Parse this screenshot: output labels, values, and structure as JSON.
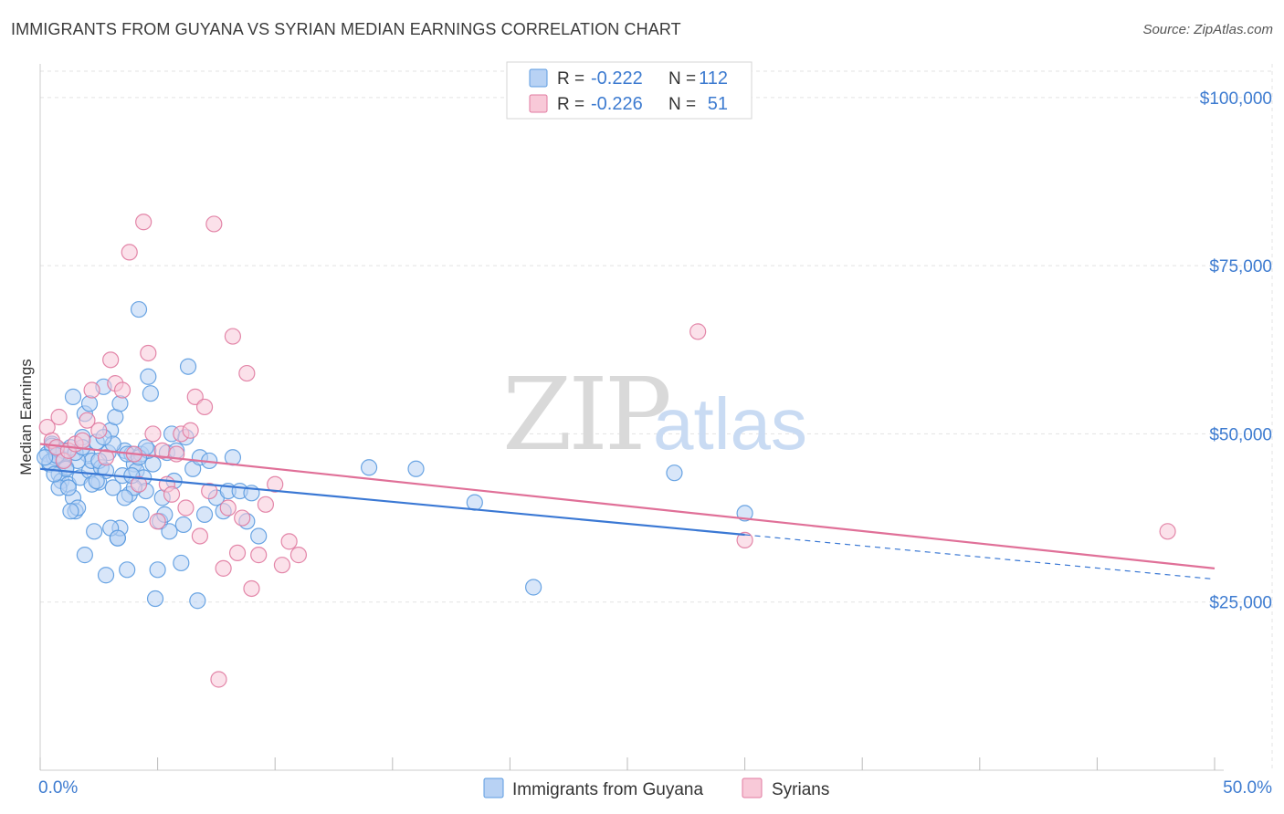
{
  "title": "IMMIGRANTS FROM GUYANA VS SYRIAN MEDIAN EARNINGS CORRELATION CHART",
  "source": "Source: ZipAtlas.com",
  "watermark": {
    "zip": "ZIP",
    "atlas": "atlas"
  },
  "legend_top": {
    "rows": [
      {
        "r_label": "R =",
        "r_value": "-0.222",
        "n_label": "N =",
        "n_value": "112",
        "color": "#5b9be0",
        "fill": "#b8d2f4"
      },
      {
        "r_label": "R =",
        "r_value": "-0.226",
        "n_label": "N =",
        "n_value": "51",
        "color": "#e07aa0",
        "fill": "#f8c9d8"
      }
    ]
  },
  "legend_bottom": [
    {
      "label": "Immigrants from Guyana",
      "color": "#5b9be0",
      "fill": "#b8d2f4"
    },
    {
      "label": "Syrians",
      "color": "#e07aa0",
      "fill": "#f8c9d8"
    }
  ],
  "chart_data": {
    "type": "scatter",
    "title": "IMMIGRANTS FROM GUYANA VS SYRIAN MEDIAN EARNINGS CORRELATION CHART",
    "xlabel": "",
    "ylabel": "Median Earnings",
    "xlim": [
      0,
      50
    ],
    "ylim": [
      0,
      105000
    ],
    "x_tick_labels": [
      "0.0%",
      "50.0%"
    ],
    "y_ticks": [
      25000,
      50000,
      75000,
      100000
    ],
    "y_tick_labels": [
      "$25,000",
      "$50,000",
      "$75,000",
      "$100,000"
    ],
    "grid": true,
    "series": [
      {
        "name": "Immigrants from Guyana",
        "color": "#3a78d4",
        "fill": "#b8d2f4",
        "stroke": "#5b9be0",
        "trend": {
          "x0": 0,
          "y0": 44800,
          "x1": 30,
          "y1": 35000,
          "dash_x1": 50,
          "dash_y1": 28400
        },
        "points": [
          [
            0.3,
            47000
          ],
          [
            0.4,
            45500
          ],
          [
            0.5,
            48500
          ],
          [
            0.6,
            46500
          ],
          [
            0.7,
            47800
          ],
          [
            0.8,
            44000
          ],
          [
            0.9,
            43000
          ],
          [
            1.0,
            46200
          ],
          [
            1.1,
            45000
          ],
          [
            1.2,
            42500
          ],
          [
            1.3,
            48000
          ],
          [
            1.4,
            40500
          ],
          [
            1.5,
            38500
          ],
          [
            1.6,
            39000
          ],
          [
            1.7,
            43500
          ],
          [
            1.8,
            49500
          ],
          [
            1.9,
            53000
          ],
          [
            2.0,
            47000
          ],
          [
            2.1,
            44500
          ],
          [
            2.2,
            46000
          ],
          [
            2.3,
            35500
          ],
          [
            2.4,
            48800
          ],
          [
            2.5,
            42800
          ],
          [
            2.6,
            45000
          ],
          [
            2.7,
            57000
          ],
          [
            2.8,
            29000
          ],
          [
            2.9,
            47200
          ],
          [
            3.0,
            50500
          ],
          [
            3.1,
            42000
          ],
          [
            3.2,
            52500
          ],
          [
            3.3,
            34500
          ],
          [
            3.4,
            36000
          ],
          [
            3.5,
            43800
          ],
          [
            3.6,
            47500
          ],
          [
            3.7,
            29800
          ],
          [
            3.8,
            41000
          ],
          [
            3.9,
            47000
          ],
          [
            4.0,
            45500
          ],
          [
            4.1,
            44500
          ],
          [
            4.2,
            68500
          ],
          [
            4.3,
            38000
          ],
          [
            4.4,
            43500
          ],
          [
            4.5,
            41500
          ],
          [
            4.6,
            58500
          ],
          [
            4.7,
            56000
          ],
          [
            4.8,
            45500
          ],
          [
            4.9,
            25500
          ],
          [
            5.0,
            29800
          ],
          [
            5.1,
            37000
          ],
          [
            5.2,
            40500
          ],
          [
            5.3,
            38000
          ],
          [
            5.4,
            47200
          ],
          [
            5.5,
            35500
          ],
          [
            5.6,
            50000
          ],
          [
            5.7,
            43000
          ],
          [
            5.8,
            47500
          ],
          [
            6.0,
            30800
          ],
          [
            6.1,
            36500
          ],
          [
            6.2,
            49500
          ],
          [
            6.3,
            60000
          ],
          [
            6.5,
            44800
          ],
          [
            6.7,
            25200
          ],
          [
            6.8,
            46500
          ],
          [
            7.0,
            38000
          ],
          [
            7.2,
            46000
          ],
          [
            7.5,
            40500
          ],
          [
            7.8,
            38500
          ],
          [
            8.0,
            41500
          ],
          [
            8.2,
            46500
          ],
          [
            8.5,
            41500
          ],
          [
            8.8,
            37000
          ],
          [
            9.0,
            41200
          ],
          [
            9.3,
            34800
          ],
          [
            0.5,
            48200
          ],
          [
            0.8,
            42000
          ],
          [
            1.0,
            47500
          ],
          [
            1.3,
            38500
          ],
          [
            1.6,
            46000
          ],
          [
            1.9,
            32000
          ],
          [
            2.2,
            42500
          ],
          [
            2.5,
            46000
          ],
          [
            2.8,
            44500
          ],
          [
            3.1,
            48500
          ],
          [
            3.4,
            54500
          ],
          [
            3.7,
            47000
          ],
          [
            4.0,
            42000
          ],
          [
            4.3,
            47000
          ],
          [
            4.6,
            47500
          ],
          [
            0.4,
            45800
          ],
          [
            0.7,
            46800
          ],
          [
            1.1,
            44800
          ],
          [
            1.5,
            47200
          ],
          [
            1.8,
            48000
          ],
          [
            2.1,
            54500
          ],
          [
            2.4,
            43000
          ],
          [
            2.7,
            49500
          ],
          [
            3.0,
            36000
          ],
          [
            3.3,
            34500
          ],
          [
            3.6,
            40500
          ],
          [
            3.9,
            43800
          ],
          [
            4.2,
            46500
          ],
          [
            4.5,
            48000
          ],
          [
            14.0,
            45000
          ],
          [
            16.0,
            44800
          ],
          [
            18.5,
            39800
          ],
          [
            21.0,
            27200
          ],
          [
            27.0,
            44200
          ],
          [
            30.0,
            38200
          ],
          [
            0.2,
            46500
          ],
          [
            0.6,
            44000
          ],
          [
            1.2,
            42000
          ],
          [
            1.4,
            55500
          ]
        ]
      },
      {
        "name": "Syrians",
        "color": "#e07098",
        "fill": "#f8c9d8",
        "stroke": "#e07aa0",
        "trend": {
          "x0": 0,
          "y0": 48500,
          "x1": 50,
          "y1": 30000
        },
        "points": [
          [
            0.3,
            51000
          ],
          [
            0.5,
            49000
          ],
          [
            0.7,
            48000
          ],
          [
            0.8,
            52500
          ],
          [
            1.0,
            46000
          ],
          [
            1.2,
            47500
          ],
          [
            1.5,
            48500
          ],
          [
            1.8,
            49000
          ],
          [
            2.0,
            52000
          ],
          [
            2.2,
            56500
          ],
          [
            2.5,
            50500
          ],
          [
            2.8,
            46500
          ],
          [
            3.0,
            61000
          ],
          [
            3.2,
            57500
          ],
          [
            3.5,
            56500
          ],
          [
            3.8,
            77000
          ],
          [
            4.0,
            47000
          ],
          [
            4.2,
            42500
          ],
          [
            4.4,
            81500
          ],
          [
            4.6,
            62000
          ],
          [
            4.8,
            50000
          ],
          [
            5.0,
            37000
          ],
          [
            5.2,
            47500
          ],
          [
            5.4,
            42500
          ],
          [
            5.6,
            41000
          ],
          [
            5.8,
            47000
          ],
          [
            6.0,
            50000
          ],
          [
            6.2,
            39000
          ],
          [
            6.4,
            50500
          ],
          [
            6.6,
            55500
          ],
          [
            6.8,
            34800
          ],
          [
            7.0,
            54000
          ],
          [
            7.2,
            41500
          ],
          [
            7.4,
            81200
          ],
          [
            7.6,
            13500
          ],
          [
            7.8,
            30000
          ],
          [
            8.0,
            39000
          ],
          [
            8.2,
            64500
          ],
          [
            8.4,
            32300
          ],
          [
            8.6,
            37500
          ],
          [
            8.8,
            59000
          ],
          [
            9.0,
            27000
          ],
          [
            9.3,
            32000
          ],
          [
            9.6,
            39500
          ],
          [
            10.0,
            42500
          ],
          [
            10.3,
            30500
          ],
          [
            10.6,
            34000
          ],
          [
            11.0,
            32000
          ],
          [
            28.0,
            65200
          ],
          [
            30.0,
            34200
          ],
          [
            48.0,
            35500
          ]
        ]
      }
    ]
  }
}
